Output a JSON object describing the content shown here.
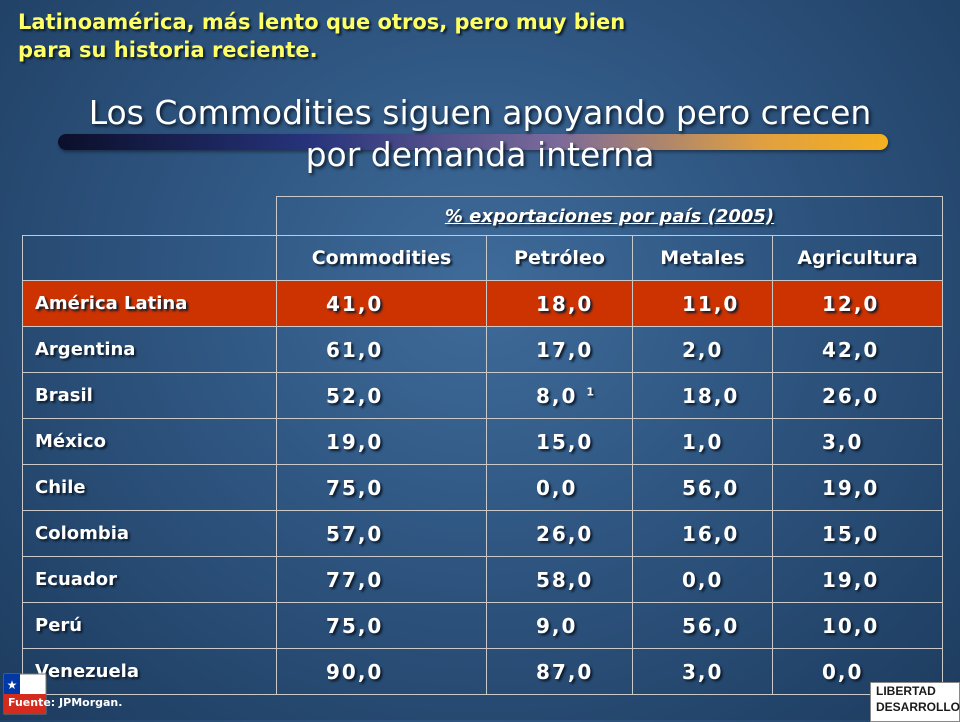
{
  "slide": {
    "subtitle_line1": "Latinoamérica, más lento que otros, pero muy bien",
    "subtitle_line2": "para su historia reciente.",
    "title_line1": "Los Commodities siguen apoyando pero crecen",
    "title_line2": "por demanda interna",
    "source": "Fuente: JPMorgan.",
    "logo_line1": "LIBERTAD",
    "logo_line2": "DESARROLLO"
  },
  "table": {
    "group_header": "% exportaciones por país (2005)",
    "columns": [
      "Commodities",
      "Petróleo",
      "Metales",
      "Agricultura"
    ],
    "rows": [
      {
        "country": "América Latina",
        "values": [
          "41,0",
          "18,0",
          "11,0",
          "12,0"
        ]
      },
      {
        "country": "Argentina",
        "values": [
          "61,0",
          "17,0",
          "2,0",
          "42,0"
        ]
      },
      {
        "country": "Brasil",
        "values": [
          "52,0",
          "8,0",
          "18,0",
          "26,0"
        ],
        "petroleo_note": "1"
      },
      {
        "country": "México",
        "values": [
          "19,0",
          "15,0",
          "1,0",
          "3,0"
        ]
      },
      {
        "country": "Chile",
        "values": [
          "75,0",
          "0,0",
          "56,0",
          "19,0"
        ]
      },
      {
        "country": "Colombia",
        "values": [
          "57,0",
          "26,0",
          "16,0",
          "15,0"
        ]
      },
      {
        "country": "Ecuador",
        "values": [
          "77,0",
          "58,0",
          "0,0",
          "19,0"
        ]
      },
      {
        "country": "Perú",
        "values": [
          "75,0",
          "9,0",
          "56,0",
          "10,0"
        ]
      },
      {
        "country": "Venezuela",
        "values": [
          "90,0",
          "87,0",
          "3,0",
          "0,0"
        ]
      }
    ]
  },
  "colors": {
    "subtitle": "#ffff66",
    "highlight_row": "#cc3300",
    "background": "#2e5580"
  }
}
